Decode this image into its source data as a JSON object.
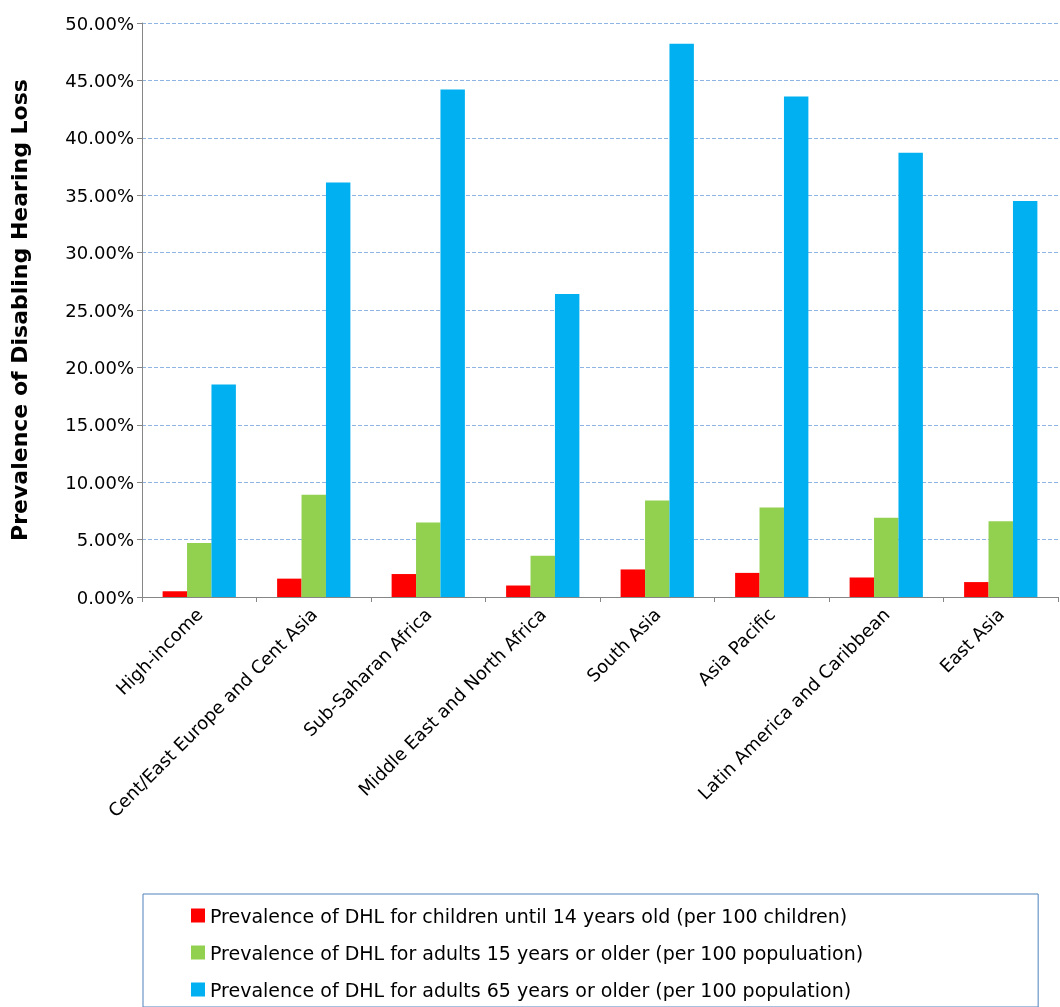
{
  "chart_data": {
    "type": "bar",
    "ylabel": "Prevalence of Disabling Hearing Loss",
    "categories": [
      "High-income",
      "Cent/East Europe and Cent Asia",
      "Sub-Saharan Africa",
      "Middle East and North Africa",
      "South Asia",
      "Asia Pacific",
      "Latin America and Caribbean",
      "East Asia"
    ],
    "series": [
      {
        "name": "Prevalence of DHL for children until 14 years old (per 100 children)",
        "color": "#ff0000",
        "values": [
          0.5,
          1.6,
          2.0,
          1.0,
          2.4,
          2.1,
          1.7,
          1.3
        ]
      },
      {
        "name": "Prevalence of DHL for adults 15 years or older (per 100 populuation)",
        "color": "#92d050",
        "values": [
          4.7,
          8.9,
          6.5,
          3.6,
          8.4,
          7.8,
          6.9,
          6.6
        ]
      },
      {
        "name": "Prevalence of DHL for adults 65 years or older (per 100 population)",
        "color": "#00b0f0",
        "values": [
          18.5,
          36.1,
          44.2,
          26.4,
          48.2,
          43.6,
          38.7,
          34.5
        ]
      }
    ],
    "ylim": [
      0,
      50
    ],
    "yticks": [
      {
        "value": 0,
        "label": "0.00%"
      },
      {
        "value": 5,
        "label": "5.00%"
      },
      {
        "value": 10,
        "label": "10.00%"
      },
      {
        "value": 15,
        "label": "15.00%"
      },
      {
        "value": 20,
        "label": "20.00%"
      },
      {
        "value": 25,
        "label": "25.00%"
      },
      {
        "value": 30,
        "label": "30.00%"
      },
      {
        "value": 35,
        "label": "35.00%"
      },
      {
        "value": 40,
        "label": "40.00%"
      },
      {
        "value": 45,
        "label": "45.00%"
      },
      {
        "value": 50,
        "label": "50.00%"
      }
    ],
    "grid": "y",
    "legend": "bottom"
  }
}
